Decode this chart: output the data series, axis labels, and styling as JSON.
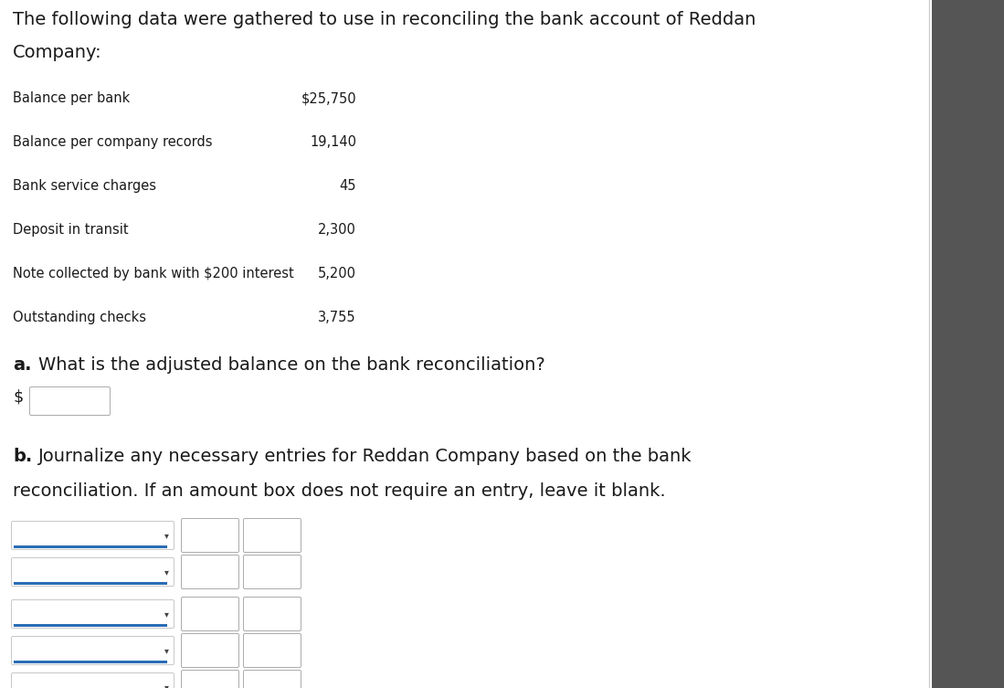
{
  "title_line1": "The following data were gathered to use in reconciling the bank account of Reddan",
  "title_line2": "Company:",
  "items": [
    {
      "label": "Balance per bank",
      "value": "$25,750"
    },
    {
      "label": "Balance per company records",
      "value": "19,140"
    },
    {
      "label": "Bank service charges",
      "value": "45"
    },
    {
      "label": "Deposit in transit",
      "value": "2,300"
    },
    {
      "label": "Note collected by bank with $200 interest",
      "value": "5,200"
    },
    {
      "label": "Outstanding checks",
      "value": "3,755"
    }
  ],
  "question_a_bold": "a.",
  "question_a_text": "What is the adjusted balance on the bank reconciliation?",
  "dollar_sign": "$",
  "question_b_bold": "b.",
  "question_b_line1": "Journalize any necessary entries for Reddan Company based on the bank",
  "question_b_line2": "reconciliation. If an amount box does not require an entry, leave it blank.",
  "bg_color": "#ffffff",
  "text_color": "#1a1a1a",
  "label_fontsize": 10.5,
  "title_fontsize": 14.0,
  "question_fontsize": 14.0,
  "blue_line_color": "#2a6db5",
  "dropdown_arrow": "▾",
  "group1_rows": 2,
  "group2_rows": 3
}
